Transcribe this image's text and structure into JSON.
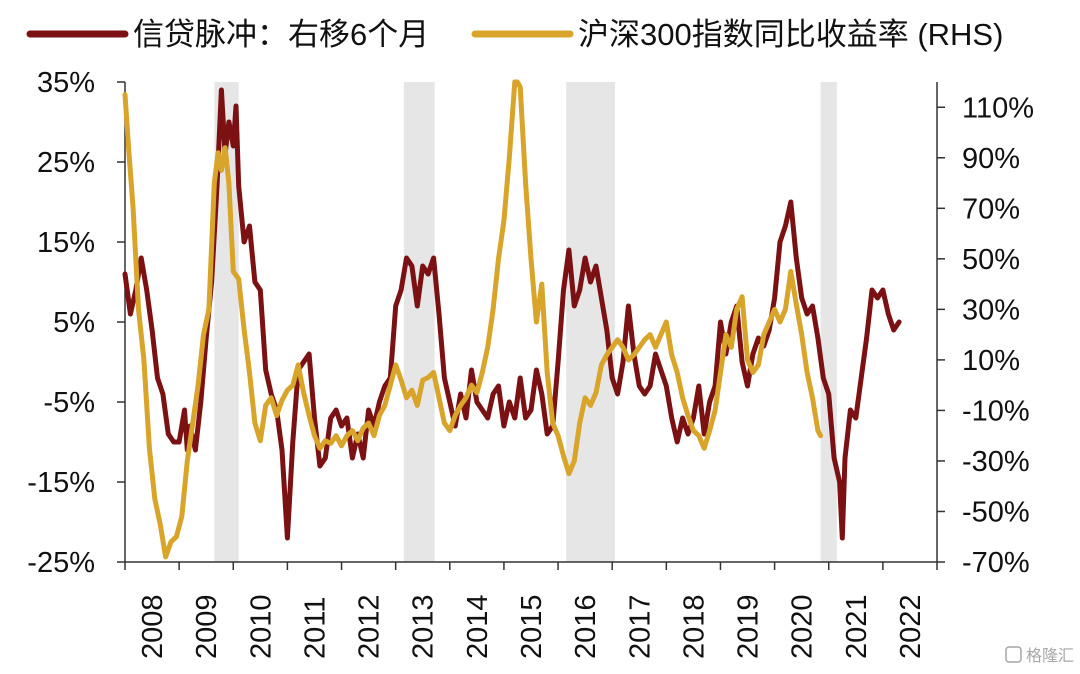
{
  "chart_data": {
    "type": "line",
    "legend": {
      "placement": "top",
      "entries": [
        "信贷脉冲：右移6个月",
        "沪深300指数同比收益率 (RHS)"
      ]
    },
    "y_left": {
      "ticks": [
        "35%",
        "25%",
        "15%",
        "5%",
        "-5%",
        "-15%",
        "-25%"
      ],
      "range": [
        -25,
        35
      ],
      "unit": "%"
    },
    "y_right": {
      "ticks": [
        "110%",
        "90%",
        "70%",
        "50%",
        "30%",
        "10%",
        "-10%",
        "-30%",
        "-50%",
        "-70%"
      ],
      "range": [
        -70,
        120
      ],
      "unit": "%"
    },
    "x_axis": {
      "ticks": [
        "2008",
        "2009",
        "2010",
        "2011",
        "2012",
        "2013",
        "2014",
        "2015",
        "2016",
        "2017",
        "2018",
        "2019",
        "2020",
        "2021",
        "2022"
      ],
      "range": [
        2008.0,
        2023.0
      ]
    },
    "grid": false,
    "shaded_periods": [
      [
        2009.65,
        2010.1
      ],
      [
        2013.15,
        2013.72
      ],
      [
        2016.15,
        2017.05
      ],
      [
        2020.85,
        2021.15
      ]
    ],
    "series": [
      {
        "name": "信贷脉冲：右移6个月",
        "axis": "left",
        "color": "#7b1113",
        "points": [
          [
            2008.0,
            11
          ],
          [
            2008.1,
            6
          ],
          [
            2008.2,
            9
          ],
          [
            2008.3,
            13
          ],
          [
            2008.4,
            9
          ],
          [
            2008.5,
            4
          ],
          [
            2008.6,
            -2
          ],
          [
            2008.7,
            -4
          ],
          [
            2008.8,
            -9
          ],
          [
            2008.9,
            -10
          ],
          [
            2009.0,
            -10
          ],
          [
            2009.1,
            -6
          ],
          [
            2009.15,
            -11
          ],
          [
            2009.2,
            -8
          ],
          [
            2009.3,
            -11
          ],
          [
            2009.4,
            -5
          ],
          [
            2009.5,
            3
          ],
          [
            2009.6,
            10
          ],
          [
            2009.7,
            22
          ],
          [
            2009.78,
            34
          ],
          [
            2009.85,
            26
          ],
          [
            2009.92,
            30
          ],
          [
            2010.0,
            27
          ],
          [
            2010.05,
            32
          ],
          [
            2010.1,
            22
          ],
          [
            2010.2,
            15
          ],
          [
            2010.3,
            17
          ],
          [
            2010.4,
            10
          ],
          [
            2010.5,
            9
          ],
          [
            2010.6,
            -1
          ],
          [
            2010.7,
            -4
          ],
          [
            2010.8,
            -6
          ],
          [
            2010.9,
            -11
          ],
          [
            2011.0,
            -22
          ],
          [
            2011.1,
            -10
          ],
          [
            2011.2,
            -1
          ],
          [
            2011.3,
            0
          ],
          [
            2011.4,
            1
          ],
          [
            2011.5,
            -7
          ],
          [
            2011.6,
            -13
          ],
          [
            2011.7,
            -12
          ],
          [
            2011.8,
            -7
          ],
          [
            2011.9,
            -6
          ],
          [
            2012.0,
            -8
          ],
          [
            2012.1,
            -7
          ],
          [
            2012.2,
            -12
          ],
          [
            2012.3,
            -9
          ],
          [
            2012.4,
            -12
          ],
          [
            2012.5,
            -6
          ],
          [
            2012.6,
            -8
          ],
          [
            2012.7,
            -5
          ],
          [
            2012.8,
            -3
          ],
          [
            2012.9,
            -2
          ],
          [
            2013.0,
            7
          ],
          [
            2013.1,
            9
          ],
          [
            2013.2,
            13
          ],
          [
            2013.3,
            12
          ],
          [
            2013.4,
            7
          ],
          [
            2013.5,
            12
          ],
          [
            2013.6,
            11
          ],
          [
            2013.7,
            13
          ],
          [
            2013.8,
            6
          ],
          [
            2013.9,
            -2
          ],
          [
            2014.0,
            -5
          ],
          [
            2014.1,
            -8
          ],
          [
            2014.2,
            -4
          ],
          [
            2014.3,
            -7
          ],
          [
            2014.4,
            -1
          ],
          [
            2014.5,
            -5
          ],
          [
            2014.6,
            -6
          ],
          [
            2014.7,
            -7
          ],
          [
            2014.8,
            -4
          ],
          [
            2014.9,
            -3
          ],
          [
            2015.0,
            -8
          ],
          [
            2015.1,
            -5
          ],
          [
            2015.2,
            -7
          ],
          [
            2015.3,
            -2
          ],
          [
            2015.4,
            -7
          ],
          [
            2015.5,
            -6
          ],
          [
            2015.6,
            -1
          ],
          [
            2015.7,
            -4
          ],
          [
            2015.8,
            -9
          ],
          [
            2015.9,
            -8
          ],
          [
            2016.0,
            0
          ],
          [
            2016.1,
            9
          ],
          [
            2016.2,
            14
          ],
          [
            2016.3,
            7
          ],
          [
            2016.4,
            9
          ],
          [
            2016.5,
            13
          ],
          [
            2016.6,
            10
          ],
          [
            2016.7,
            12
          ],
          [
            2016.8,
            8
          ],
          [
            2016.9,
            4
          ],
          [
            2017.0,
            -2
          ],
          [
            2017.1,
            -4
          ],
          [
            2017.2,
            0
          ],
          [
            2017.3,
            7
          ],
          [
            2017.4,
            1
          ],
          [
            2017.5,
            -3
          ],
          [
            2017.6,
            -4
          ],
          [
            2017.7,
            -3
          ],
          [
            2017.8,
            1
          ],
          [
            2017.9,
            -1
          ],
          [
            2018.0,
            -3
          ],
          [
            2018.1,
            -7
          ],
          [
            2018.2,
            -10
          ],
          [
            2018.3,
            -7
          ],
          [
            2018.4,
            -9
          ],
          [
            2018.5,
            -7
          ],
          [
            2018.6,
            -3
          ],
          [
            2018.7,
            -9
          ],
          [
            2018.8,
            -5
          ],
          [
            2018.9,
            -3
          ],
          [
            2019.0,
            5
          ],
          [
            2019.1,
            1
          ],
          [
            2019.2,
            5
          ],
          [
            2019.3,
            7
          ],
          [
            2019.4,
            0
          ],
          [
            2019.5,
            -3
          ],
          [
            2019.6,
            1
          ],
          [
            2019.7,
            3
          ],
          [
            2019.8,
            2
          ],
          [
            2019.9,
            4
          ],
          [
            2020.0,
            8
          ],
          [
            2020.1,
            15
          ],
          [
            2020.2,
            17
          ],
          [
            2020.3,
            20
          ],
          [
            2020.4,
            13
          ],
          [
            2020.5,
            8
          ],
          [
            2020.6,
            6
          ],
          [
            2020.7,
            7
          ],
          [
            2020.8,
            3
          ],
          [
            2020.9,
            -2
          ],
          [
            2021.0,
            -4
          ],
          [
            2021.1,
            -12
          ],
          [
            2021.2,
            -15
          ],
          [
            2021.25,
            -22
          ],
          [
            2021.3,
            -12
          ],
          [
            2021.4,
            -6
          ],
          [
            2021.5,
            -7
          ],
          [
            2021.6,
            -2
          ],
          [
            2021.7,
            3
          ],
          [
            2021.8,
            9
          ],
          [
            2021.9,
            8
          ],
          [
            2022.0,
            9
          ],
          [
            2022.1,
            6
          ],
          [
            2022.2,
            4
          ],
          [
            2022.3,
            5
          ]
        ]
      },
      {
        "name": "沪深300指数同比收益率 (RHS)",
        "axis": "right",
        "color": "#d8a42a",
        "points": [
          [
            2008.0,
            115
          ],
          [
            2008.08,
            90
          ],
          [
            2008.15,
            70
          ],
          [
            2008.25,
            30
          ],
          [
            2008.35,
            10
          ],
          [
            2008.45,
            -25
          ],
          [
            2008.55,
            -45
          ],
          [
            2008.65,
            -55
          ],
          [
            2008.75,
            -68
          ],
          [
            2008.85,
            -62
          ],
          [
            2008.95,
            -60
          ],
          [
            2009.05,
            -52
          ],
          [
            2009.15,
            -30
          ],
          [
            2009.25,
            -15
          ],
          [
            2009.35,
            0
          ],
          [
            2009.45,
            20
          ],
          [
            2009.55,
            30
          ],
          [
            2009.65,
            80
          ],
          [
            2009.72,
            92
          ],
          [
            2009.78,
            85
          ],
          [
            2009.85,
            94
          ],
          [
            2009.92,
            80
          ],
          [
            2010.0,
            45
          ],
          [
            2010.1,
            42
          ],
          [
            2010.2,
            22
          ],
          [
            2010.3,
            5
          ],
          [
            2010.4,
            -15
          ],
          [
            2010.5,
            -22
          ],
          [
            2010.6,
            -8
          ],
          [
            2010.7,
            -5
          ],
          [
            2010.8,
            -12
          ],
          [
            2010.9,
            -6
          ],
          [
            2011.0,
            -2
          ],
          [
            2011.1,
            0
          ],
          [
            2011.2,
            8
          ],
          [
            2011.3,
            -3
          ],
          [
            2011.4,
            -12
          ],
          [
            2011.5,
            -20
          ],
          [
            2011.6,
            -25
          ],
          [
            2011.7,
            -22
          ],
          [
            2011.8,
            -23
          ],
          [
            2011.9,
            -20
          ],
          [
            2012.0,
            -24
          ],
          [
            2012.1,
            -20
          ],
          [
            2012.2,
            -18
          ],
          [
            2012.3,
            -22
          ],
          [
            2012.4,
            -17
          ],
          [
            2012.5,
            -15
          ],
          [
            2012.6,
            -20
          ],
          [
            2012.7,
            -12
          ],
          [
            2012.8,
            -8
          ],
          [
            2012.9,
            0
          ],
          [
            2013.0,
            8
          ],
          [
            2013.1,
            2
          ],
          [
            2013.2,
            -5
          ],
          [
            2013.3,
            -2
          ],
          [
            2013.4,
            -8
          ],
          [
            2013.5,
            2
          ],
          [
            2013.6,
            3
          ],
          [
            2013.7,
            5
          ],
          [
            2013.8,
            -5
          ],
          [
            2013.9,
            -15
          ],
          [
            2014.0,
            -18
          ],
          [
            2014.1,
            -12
          ],
          [
            2014.2,
            -8
          ],
          [
            2014.3,
            -5
          ],
          [
            2014.4,
            0
          ],
          [
            2014.5,
            -3
          ],
          [
            2014.6,
            5
          ],
          [
            2014.7,
            15
          ],
          [
            2014.8,
            30
          ],
          [
            2014.9,
            50
          ],
          [
            2015.0,
            65
          ],
          [
            2015.1,
            90
          ],
          [
            2015.2,
            120
          ],
          [
            2015.25,
            125
          ],
          [
            2015.3,
            118
          ],
          [
            2015.4,
            80
          ],
          [
            2015.5,
            50
          ],
          [
            2015.6,
            25
          ],
          [
            2015.7,
            40
          ],
          [
            2015.8,
            5
          ],
          [
            2015.9,
            -15
          ],
          [
            2016.0,
            -20
          ],
          [
            2016.1,
            -28
          ],
          [
            2016.2,
            -35
          ],
          [
            2016.3,
            -30
          ],
          [
            2016.4,
            -15
          ],
          [
            2016.5,
            -5
          ],
          [
            2016.6,
            -8
          ],
          [
            2016.7,
            -3
          ],
          [
            2016.8,
            8
          ],
          [
            2016.9,
            12
          ],
          [
            2017.0,
            15
          ],
          [
            2017.1,
            18
          ],
          [
            2017.2,
            15
          ],
          [
            2017.3,
            10
          ],
          [
            2017.4,
            12
          ],
          [
            2017.5,
            15
          ],
          [
            2017.6,
            18
          ],
          [
            2017.7,
            20
          ],
          [
            2017.8,
            15
          ],
          [
            2017.9,
            20
          ],
          [
            2018.0,
            25
          ],
          [
            2018.1,
            12
          ],
          [
            2018.2,
            5
          ],
          [
            2018.3,
            -5
          ],
          [
            2018.4,
            -12
          ],
          [
            2018.5,
            -18
          ],
          [
            2018.6,
            -20
          ],
          [
            2018.7,
            -25
          ],
          [
            2018.8,
            -18
          ],
          [
            2018.9,
            -10
          ],
          [
            2019.0,
            5
          ],
          [
            2019.1,
            20
          ],
          [
            2019.2,
            15
          ],
          [
            2019.3,
            30
          ],
          [
            2019.4,
            35
          ],
          [
            2019.5,
            10
          ],
          [
            2019.6,
            5
          ],
          [
            2019.7,
            8
          ],
          [
            2019.8,
            20
          ],
          [
            2019.9,
            25
          ],
          [
            2020.0,
            30
          ],
          [
            2020.1,
            25
          ],
          [
            2020.2,
            30
          ],
          [
            2020.3,
            45
          ],
          [
            2020.4,
            32
          ],
          [
            2020.5,
            20
          ],
          [
            2020.6,
            5
          ],
          [
            2020.7,
            -5
          ],
          [
            2020.8,
            -18
          ],
          [
            2020.85,
            -20
          ]
        ]
      }
    ]
  },
  "watermark": {
    "text": "格隆汇",
    "icon": "watermark-logo-icon"
  }
}
